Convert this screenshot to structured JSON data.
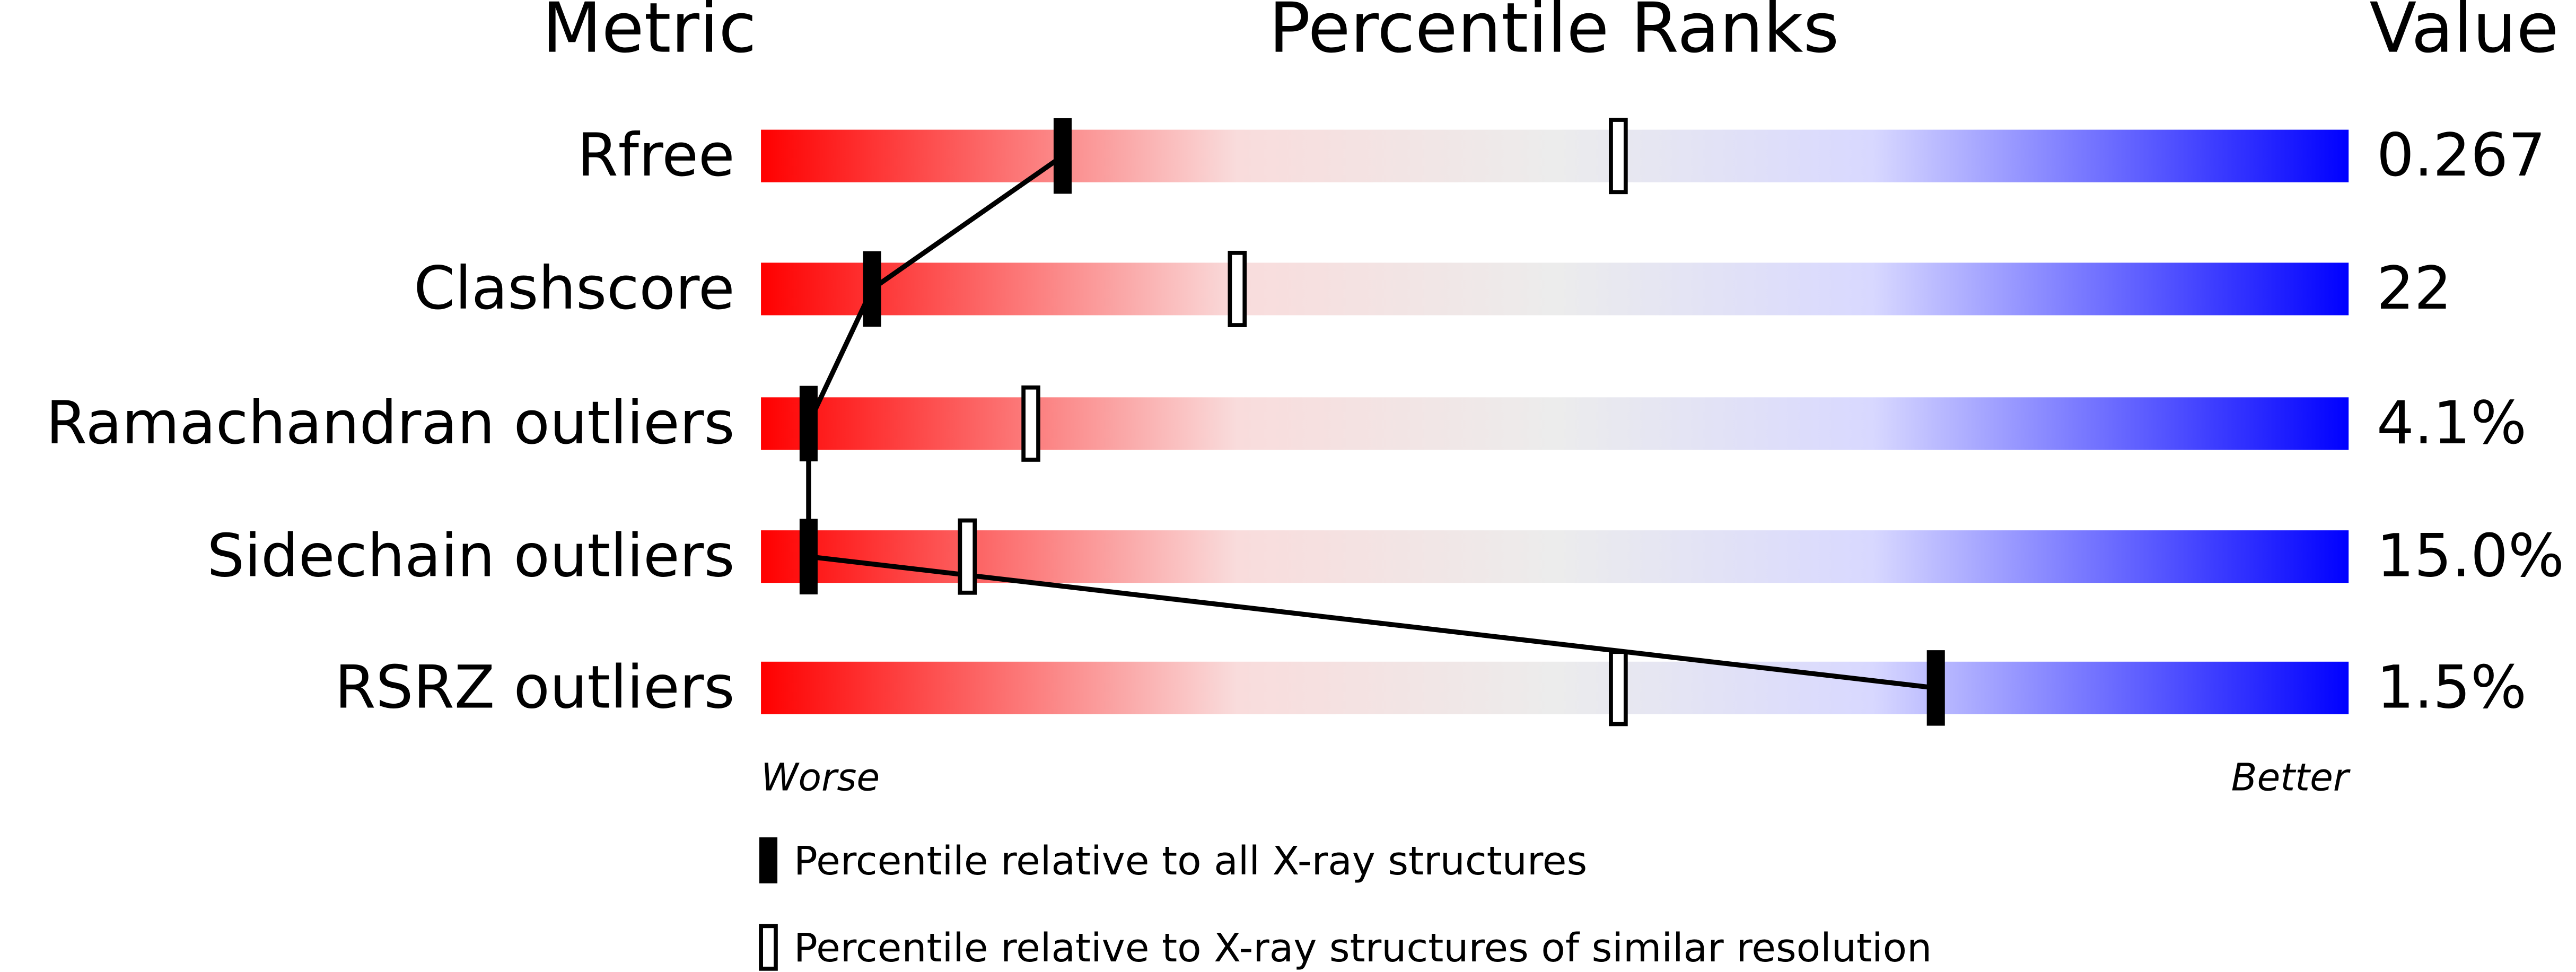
{
  "chart_data": {
    "type": "percentile",
    "headers": [
      "Metric",
      "Percentile Ranks",
      "Value"
    ],
    "categories": [
      "Rfree",
      "Clashscore",
      "Ramachandran outliers",
      "Sidechain outliers",
      "RSRZ outliers"
    ],
    "metric_values": [
      "0.267",
      "22",
      "4.1%",
      "15.0%",
      "1.5%"
    ],
    "series": [
      {
        "name": "Percentile relative to all X-ray structures",
        "color": "#000000",
        "style": "filled",
        "values": [
          19,
          7,
          3,
          3,
          74
        ]
      },
      {
        "name": "Percentile relative to X-ray structures of similar resolution",
        "color": "#000000",
        "style": "open",
        "values": [
          54,
          30,
          17,
          13,
          54
        ]
      }
    ],
    "xlim": [
      0,
      100
    ],
    "worse_label": "Worse",
    "better_label": "Better",
    "gradient": [
      "#ff0000",
      "#f9dcdc",
      "#ececec",
      "#d8d8ff",
      "#0000ff"
    ]
  }
}
